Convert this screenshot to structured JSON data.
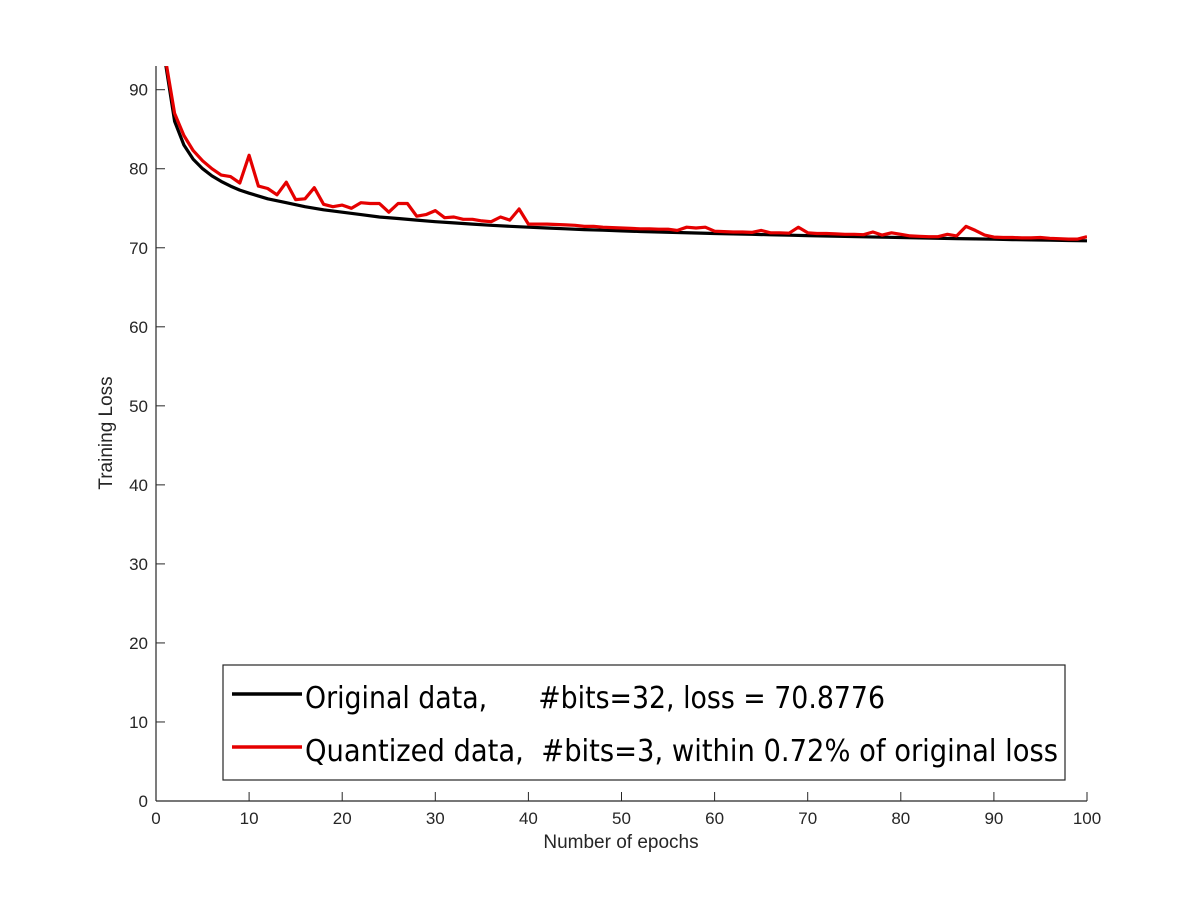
{
  "chart_data": {
    "type": "line",
    "xlabel": "Number of epochs",
    "ylabel": "Training Loss",
    "xlim": [
      0,
      100
    ],
    "ylim": [
      0,
      93
    ],
    "x_ticks": [
      "0",
      "10",
      "20",
      "30",
      "40",
      "50",
      "60",
      "70",
      "80",
      "90",
      "100"
    ],
    "y_ticks": [
      "0",
      "10",
      "20",
      "30",
      "40",
      "50",
      "60",
      "70",
      "80",
      "90"
    ],
    "grid": false,
    "legend_position": "bottom-center",
    "series": [
      {
        "name": "Original data,      #bits=32, loss = 70.8776",
        "color": "#000000",
        "x": [
          1,
          2,
          3,
          4,
          5,
          6,
          7,
          8,
          9,
          10,
          12,
          14,
          16,
          18,
          20,
          22,
          24,
          26,
          28,
          30,
          32,
          34,
          36,
          38,
          40,
          42,
          44,
          46,
          48,
          50,
          52,
          54,
          56,
          58,
          60,
          62,
          64,
          66,
          68,
          70,
          72,
          74,
          76,
          78,
          80,
          82,
          84,
          86,
          88,
          90,
          92,
          94,
          96,
          98,
          100
        ],
        "y": [
          93.5,
          86.0,
          83.0,
          81.2,
          80.0,
          79.1,
          78.4,
          77.8,
          77.3,
          76.9,
          76.2,
          75.7,
          75.2,
          74.8,
          74.5,
          74.2,
          73.9,
          73.7,
          73.5,
          73.3,
          73.15,
          73.0,
          72.85,
          72.72,
          72.6,
          72.5,
          72.4,
          72.3,
          72.22,
          72.14,
          72.06,
          72.0,
          71.93,
          71.87,
          71.81,
          71.75,
          71.7,
          71.64,
          71.59,
          71.54,
          71.49,
          71.44,
          71.39,
          71.34,
          71.3,
          71.25,
          71.2,
          71.16,
          71.12,
          71.08,
          71.04,
          71.0,
          70.96,
          70.92,
          70.88
        ]
      },
      {
        "name": "Quantized data,  #bits=3, within 0.72% of original loss",
        "color": "#e50000",
        "x": [
          1,
          2,
          3,
          4,
          5,
          6,
          7,
          8,
          9,
          10,
          11,
          12,
          13,
          14,
          15,
          16,
          17,
          18,
          19,
          20,
          21,
          22,
          23,
          24,
          25,
          26,
          27,
          28,
          29,
          30,
          31,
          32,
          33,
          34,
          35,
          36,
          37,
          38,
          39,
          40,
          41,
          42,
          43,
          44,
          45,
          46,
          47,
          48,
          49,
          50,
          51,
          52,
          53,
          54,
          55,
          56,
          57,
          58,
          59,
          60,
          61,
          62,
          63,
          64,
          65,
          66,
          67,
          68,
          69,
          70,
          71,
          72,
          73,
          74,
          75,
          76,
          77,
          78,
          79,
          80,
          81,
          82,
          83,
          84,
          85,
          86,
          87,
          88,
          89,
          90,
          91,
          92,
          93,
          94,
          95,
          96,
          97,
          98,
          99,
          100
        ],
        "y": [
          94.0,
          87.0,
          84.2,
          82.3,
          81.0,
          80.0,
          79.2,
          79.0,
          78.2,
          81.7,
          77.8,
          77.5,
          76.7,
          78.3,
          76.1,
          76.2,
          77.6,
          75.5,
          75.2,
          75.4,
          75.0,
          75.7,
          75.6,
          75.6,
          74.5,
          75.6,
          75.6,
          74.0,
          74.2,
          74.7,
          73.8,
          73.9,
          73.6,
          73.6,
          73.4,
          73.3,
          73.9,
          73.5,
          74.9,
          73.0,
          73.0,
          73.0,
          72.95,
          72.9,
          72.85,
          72.7,
          72.7,
          72.6,
          72.55,
          72.5,
          72.45,
          72.4,
          72.4,
          72.35,
          72.35,
          72.2,
          72.6,
          72.5,
          72.6,
          72.1,
          72.05,
          72.0,
          72.0,
          71.95,
          72.2,
          71.9,
          71.9,
          71.85,
          72.6,
          71.9,
          71.8,
          71.8,
          71.75,
          71.7,
          71.7,
          71.65,
          72.0,
          71.6,
          71.9,
          71.7,
          71.5,
          71.45,
          71.4,
          71.4,
          71.7,
          71.5,
          72.7,
          72.2,
          71.6,
          71.35,
          71.3,
          71.3,
          71.25,
          71.25,
          71.3,
          71.2,
          71.15,
          71.1,
          71.1,
          71.4
        ]
      }
    ]
  }
}
